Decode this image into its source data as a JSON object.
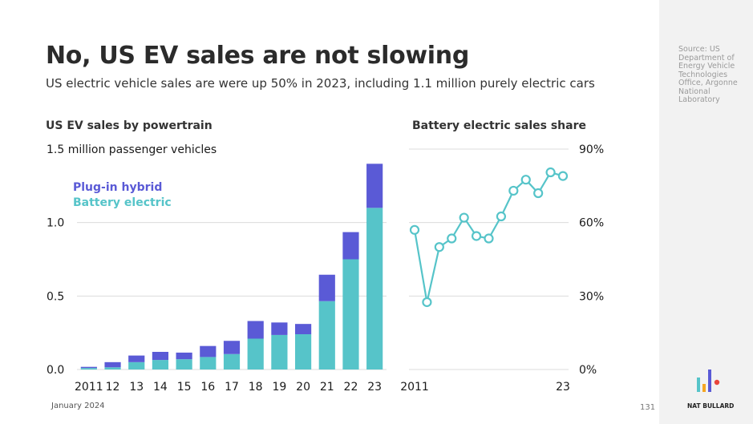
{
  "title": "No, US EV sales are not slowing",
  "subtitle": "US electric vehicle sales are were up 50% in 2023, including 1.1 million purely electric cars",
  "source": "Source: US Department of Energy Vehicle Technologies Office, Argonne National Laboratory",
  "footer": {
    "date": "January 2024",
    "page": "131",
    "brand": "NAT BULLARD"
  },
  "colors": {
    "plugin_hybrid": "#5a5ad6",
    "battery_electric": "#56c4c9",
    "line": "#56c4c9",
    "grid": "#dcdcdc"
  },
  "chart_data": [
    {
      "type": "bar",
      "title": "US EV sales by powertrain",
      "unit_label": "1.5 million passenger vehicles",
      "stacked": true,
      "categories": [
        "2011",
        "12",
        "13",
        "14",
        "15",
        "16",
        "17",
        "18",
        "19",
        "20",
        "21",
        "22",
        "23"
      ],
      "series": [
        {
          "name": "Battery electric",
          "values": [
            0.01,
            0.015,
            0.05,
            0.065,
            0.07,
            0.085,
            0.105,
            0.21,
            0.235,
            0.24,
            0.465,
            0.75,
            1.1
          ]
        },
        {
          "name": "Plug-in hybrid",
          "values": [
            0.008,
            0.035,
            0.045,
            0.055,
            0.045,
            0.075,
            0.09,
            0.12,
            0.085,
            0.07,
            0.18,
            0.185,
            0.3
          ]
        }
      ],
      "yticks": [
        "0.0",
        "0.5",
        "1.0"
      ],
      "ylim": [
        0,
        1.5
      ],
      "legend_position": "top-left",
      "grid": true
    },
    {
      "type": "line",
      "title": "Battery electric sales share",
      "x": [
        2011,
        2012,
        2013,
        2014,
        2015,
        2016,
        2017,
        2018,
        2019,
        2020,
        2021,
        2022,
        2023
      ],
      "xticks": [
        "2011",
        "23"
      ],
      "values": [
        57,
        27.5,
        50,
        53.5,
        62,
        54.5,
        53.5,
        62.5,
        73,
        77.5,
        72,
        80.5,
        79
      ],
      "yticks": [
        "0%",
        "30%",
        "60%",
        "90%"
      ],
      "ylim": [
        0,
        90
      ],
      "grid": true
    }
  ]
}
